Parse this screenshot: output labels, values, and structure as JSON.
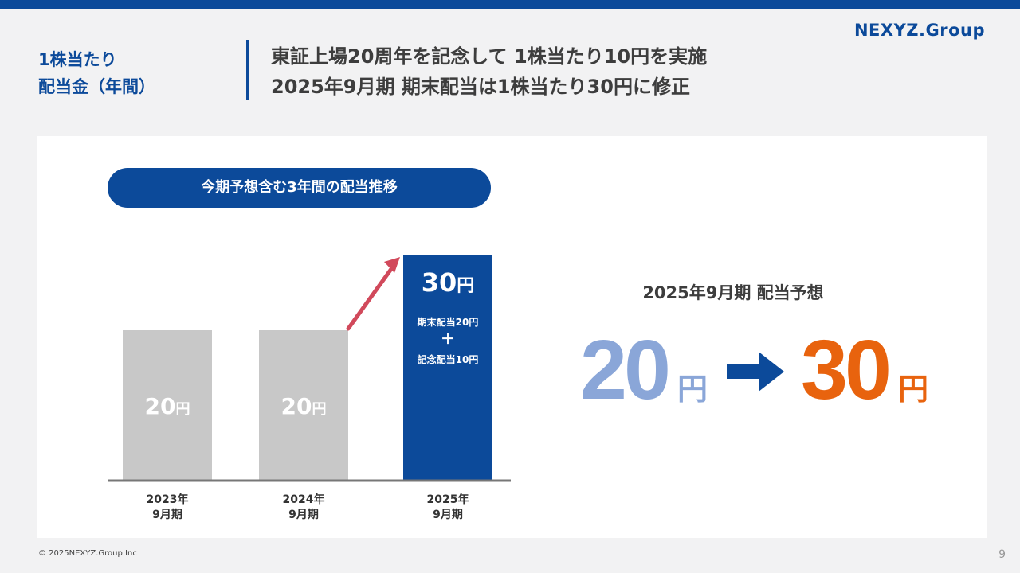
{
  "header": {
    "logo": "NEXYZ.Group",
    "section_label_line1": "1株当たり",
    "section_label_line2": "配当金（年間）",
    "headline_line1": "東証上場20周年を記念して 1株当たり10円を実施",
    "headline_line2": "2025年9月期 期末配当は1株当たり30円に修正"
  },
  "chart_title": "今期予想含む3年間の配当推移",
  "chart_data": {
    "type": "bar",
    "title": "今期予想含む3年間の配当推移",
    "categories": [
      [
        "2023年",
        "9月期"
      ],
      [
        "2024年",
        "9月期"
      ],
      [
        "2025年",
        "9月期"
      ]
    ],
    "values": [
      20,
      20,
      30
    ],
    "value_labels": [
      "20",
      "20",
      "30"
    ],
    "unit": "円",
    "ylim": [
      0,
      30
    ],
    "grid": false,
    "colors": [
      "#c8c8c8",
      "#c8c8c8",
      "#0c4a9a"
    ],
    "highlight_breakdown": [
      "期末配当20円",
      "＋",
      "記念配当10円"
    ],
    "arrow_color": "#d1495b"
  },
  "forecast": {
    "title": "2025年9月期 配当予想",
    "old_value": "20",
    "new_value": "30",
    "unit": "円",
    "old_color": "#8aa6d8",
    "new_color": "#e8630e",
    "arrow_icon": "right-arrow-icon"
  },
  "footer": {
    "copyright": "© 2025NEXYZ.Group.Inc",
    "page": "9"
  }
}
